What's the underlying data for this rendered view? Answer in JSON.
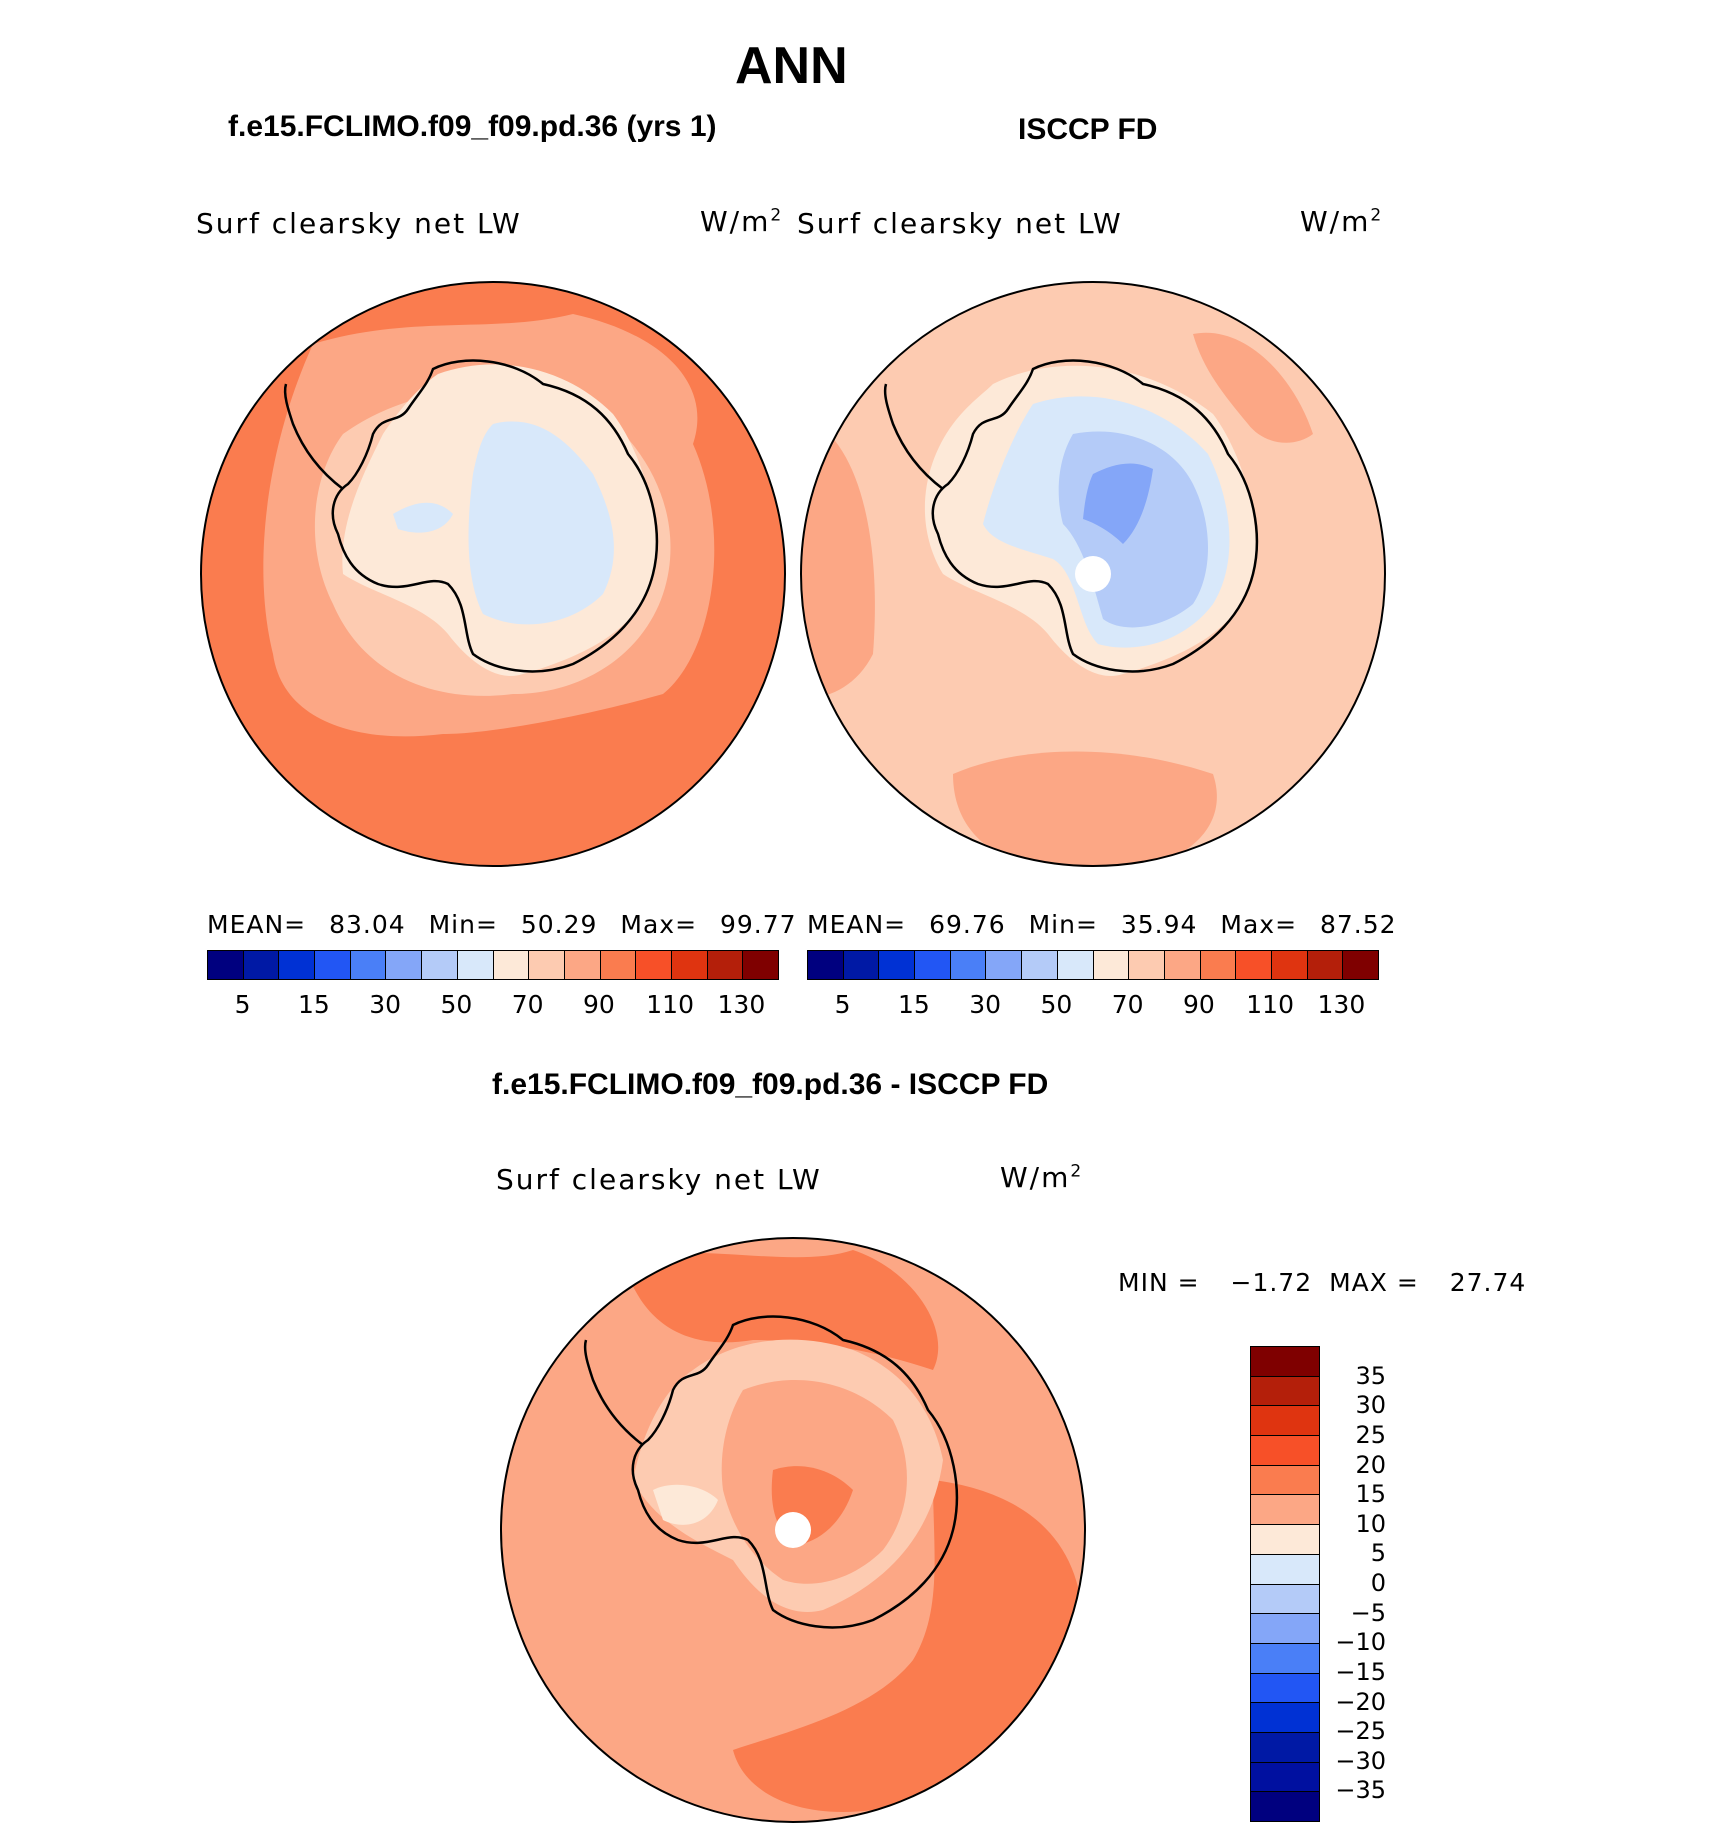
{
  "title": "ANN",
  "panels": {
    "model": {
      "title": "f.e15.FCLIMO.f09_f09.pd.36 (yrs 1)",
      "var_label": "Surf clearsky net LW",
      "units": "W/m",
      "units_sup": "2",
      "stats": {
        "mean_label": "MEAN=",
        "mean": "83.04",
        "min_label": "Min=",
        "min": "50.29",
        "max_label": "Max=",
        "max": "99.77"
      }
    },
    "obs": {
      "title": "ISCCP FD",
      "var_label": "Surf clearsky net LW",
      "units": "W/m",
      "units_sup": "2",
      "stats": {
        "mean_label": "MEAN=",
        "mean": "69.76",
        "min_label": "Min=",
        "min": "35.94",
        "max_label": "Max=",
        "max": "87.52"
      }
    },
    "diff": {
      "title": "f.e15.FCLIMO.f09_f09.pd.36 - ISCCP FD",
      "var_label": "Surf clearsky net LW",
      "units": "W/m",
      "units_sup": "2",
      "stats": {
        "min_label": "MIN =",
        "min": "−1.72",
        "max_label": "MAX =",
        "max": "27.74"
      }
    }
  },
  "colorbar_abs": {
    "labels": [
      "5",
      "15",
      "30",
      "50",
      "70",
      "90",
      "110",
      "130"
    ],
    "colors": [
      "#00007f",
      "#0019a5",
      "#0031d4",
      "#2256f4",
      "#4a7ff7",
      "#84a6f8",
      "#b4cbf8",
      "#d8e8fa",
      "#fde9d8",
      "#fdcbb1",
      "#fca785",
      "#fa7c4f",
      "#f75028",
      "#df3410",
      "#b41f0a",
      "#7f0000"
    ]
  },
  "colorbar_diff": {
    "labels": [
      "35",
      "30",
      "25",
      "20",
      "15",
      "10",
      "5",
      "0",
      "−5",
      "−10",
      "−15",
      "−20",
      "−25",
      "−30",
      "−35"
    ],
    "colors": [
      "#7f0000",
      "#b41f0a",
      "#df3410",
      "#f75028",
      "#fa7c4f",
      "#fca785",
      "#fde9d8",
      "#d8e8fa",
      "#b4cbf8",
      "#84a6f8",
      "#4a7ff7",
      "#2256f4",
      "#0031d4",
      "#0019a5",
      "#0010a0",
      "#00007f"
    ]
  },
  "map_colors": {
    "orange_dark": "#fa7c4f",
    "orange_mid": "#fca785",
    "peach": "#fdcbb1",
    "cream": "#fde9d8",
    "ice_light": "#d8e8fa",
    "ice_mid": "#b4cbf8",
    "ice_dark": "#84a6f8"
  }
}
